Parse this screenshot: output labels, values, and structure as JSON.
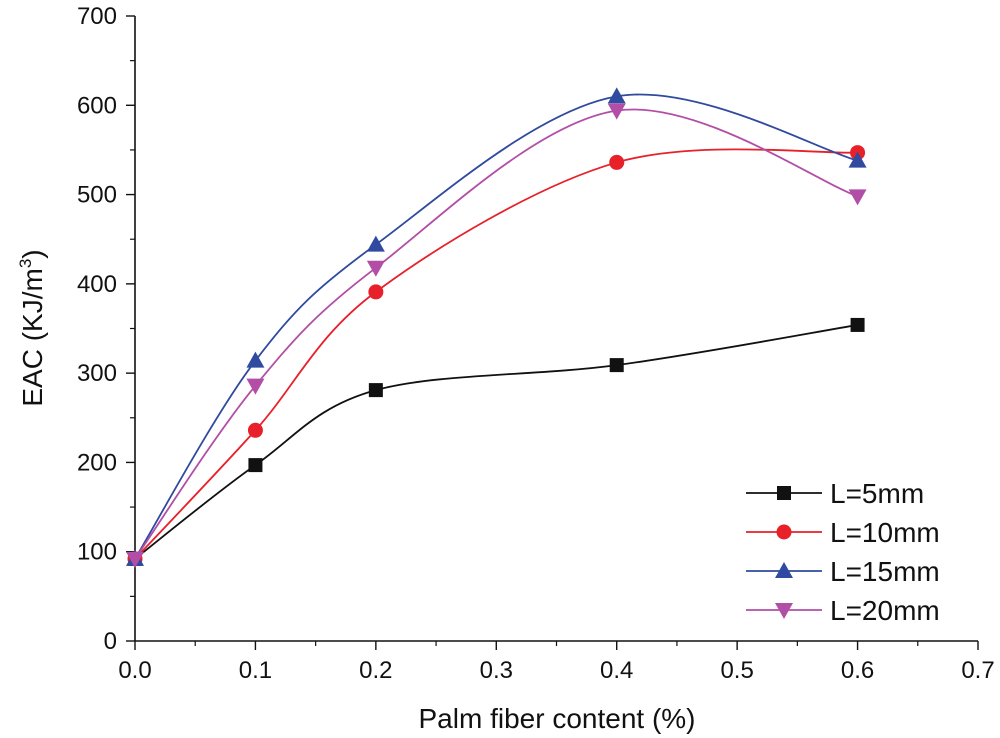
{
  "chart_data": {
    "type": "line",
    "xlabel": "Palm fiber content (%)",
    "ylabel_main": "EAC (KJ/m",
    "ylabel_sup": "3",
    "ylabel_close": ")",
    "xlim": [
      0,
      0.7
    ],
    "ylim": [
      0,
      700
    ],
    "x_ticks": [
      "0.0",
      "0.1",
      "0.2",
      "0.3",
      "0.4",
      "0.5",
      "0.6",
      "0.7"
    ],
    "x_tick_values": [
      0,
      0.1,
      0.2,
      0.3,
      0.4,
      0.5,
      0.6,
      0.7
    ],
    "y_ticks": [
      "0",
      "100",
      "200",
      "300",
      "400",
      "500",
      "600",
      "700"
    ],
    "y_tick_values": [
      0,
      100,
      200,
      300,
      400,
      500,
      600,
      700
    ],
    "legend_position": "bottom-right",
    "grid": false,
    "series": [
      {
        "name": "L=5mm",
        "color": "#111111",
        "marker": "square",
        "x": [
          0,
          0.1,
          0.2,
          0.4,
          0.6
        ],
        "values": [
          92,
          197,
          281,
          309,
          354
        ]
      },
      {
        "name": "L=10mm",
        "color": "#e8202a",
        "marker": "circle",
        "x": [
          0,
          0.1,
          0.2,
          0.4,
          0.6
        ],
        "values": [
          92,
          236,
          391,
          536,
          547
        ]
      },
      {
        "name": "L=15mm",
        "color": "#2f4a9e",
        "marker": "triangle-up",
        "x": [
          0,
          0.1,
          0.2,
          0.4,
          0.6
        ],
        "values": [
          92,
          314,
          444,
          610,
          538
        ]
      },
      {
        "name": "L=20mm",
        "color": "#b24ea6",
        "marker": "triangle-down",
        "x": [
          0,
          0.1,
          0.2,
          0.4,
          0.6
        ],
        "values": [
          92,
          286,
          418,
          594,
          498
        ]
      }
    ]
  }
}
